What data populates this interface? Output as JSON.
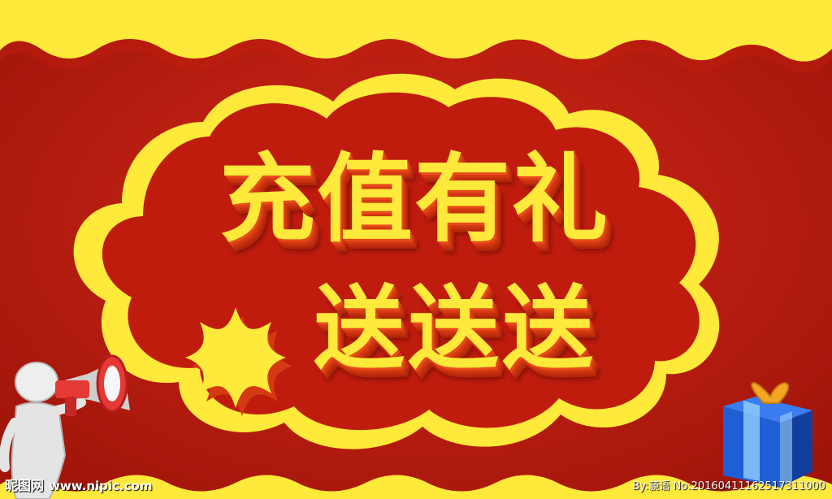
{
  "banner": {
    "headline": "充值有礼",
    "subline": "送送送"
  },
  "watermark": {
    "logo_text": "昵图网",
    "site": "www.nipic.com",
    "id_text": "By:藐语 No:20160411162517311000"
  },
  "colors": {
    "background": "#b01a10",
    "border_yellow": "#ffe93a",
    "text_yellow": "#ffe93a",
    "extrusion_red": "#d43a12"
  },
  "icons": [
    "megaphone-figure-icon",
    "star-burst-icon",
    "gift-box-icon"
  ]
}
